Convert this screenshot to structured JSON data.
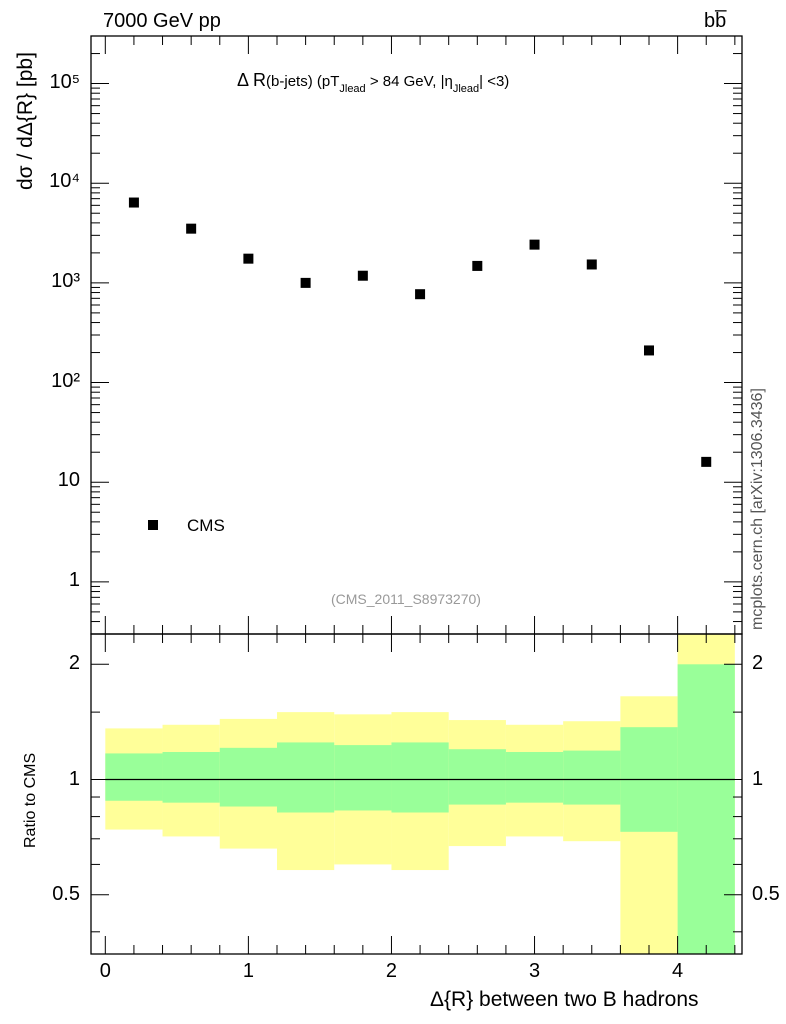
{
  "header": {
    "left": "7000 GeV pp",
    "right": "bb̅"
  },
  "side_label": "mcplots.cern.ch [arXiv:1306.3436]",
  "chart_data": [
    {
      "type": "scatter",
      "title_main": "Δ R",
      "title_parts": [
        "(b-jets) (pT",
        "Jlead",
        " >  84 GeV, |η",
        "Jlead",
        "| <3)"
      ],
      "ylabel": "dσ / dΔ{R} [pb]",
      "yscale": "log",
      "ylim": [
        0.3,
        300000
      ],
      "xlim": [
        -0.1,
        4.45
      ],
      "ytick_labels": [
        "1",
        "10",
        "10²",
        "10³",
        "10⁴",
        "10⁵"
      ],
      "ytick_values": [
        1,
        10,
        100,
        1000,
        10000,
        100000
      ],
      "legend": "CMS",
      "analysis_id": "(CMS_2011_S8973270)",
      "series": [
        {
          "name": "CMS",
          "x": [
            0.2,
            0.6,
            1.0,
            1.4,
            1.8,
            2.2,
            2.6,
            3.0,
            3.4,
            3.8,
            4.2
          ],
          "y": [
            6400,
            3500,
            1750,
            1000,
            1180,
            770,
            1480,
            2420,
            1530,
            210,
            16
          ]
        }
      ]
    },
    {
      "type": "area",
      "ylabel": "Ratio to CMS",
      "xlabel": "Δ{R} between two B hadrons",
      "yscale": "log",
      "ylim": [
        0.35,
        2.4
      ],
      "ytick_labels": [
        "0.5",
        "1",
        "2"
      ],
      "ytick_values": [
        0.5,
        1,
        2
      ],
      "xtick_labels": [
        "0",
        "1",
        "2",
        "3",
        "4"
      ],
      "xtick_values": [
        0,
        1,
        2,
        3,
        4
      ],
      "bins": [
        0,
        0.4,
        0.8,
        1.2,
        1.6,
        2.0,
        2.4,
        2.8,
        3.2,
        3.6,
        4.0,
        4.4
      ],
      "inner_band": {
        "lo": [
          0.88,
          0.87,
          0.85,
          0.82,
          0.83,
          0.82,
          0.86,
          0.87,
          0.86,
          0.73,
          0.35
        ],
        "hi": [
          1.17,
          1.18,
          1.21,
          1.25,
          1.23,
          1.25,
          1.2,
          1.18,
          1.19,
          1.37,
          2.0
        ]
      },
      "outer_band": {
        "lo": [
          0.74,
          0.71,
          0.66,
          0.58,
          0.6,
          0.58,
          0.67,
          0.71,
          0.69,
          0.35,
          0.35
        ],
        "hi": [
          1.36,
          1.39,
          1.44,
          1.5,
          1.48,
          1.5,
          1.43,
          1.39,
          1.42,
          1.65,
          2.4
        ]
      },
      "colors": {
        "inner": "#99ff99",
        "outer": "#ffff99",
        "line": "#000000"
      }
    }
  ]
}
